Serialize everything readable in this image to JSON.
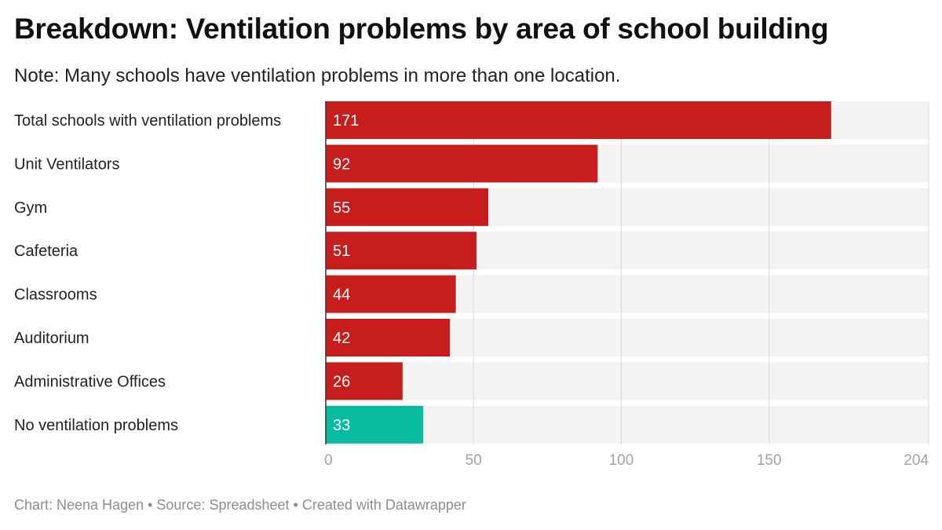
{
  "chart_data": {
    "type": "bar",
    "orientation": "horizontal",
    "title": "Breakdown: Ventilation problems by area of school building",
    "subtitle": "Note: Many schools have ventilation problems in more than one location.",
    "categories": [
      "Total schools with ventilation problems",
      "Unit Ventilators",
      "Gym",
      "Cafeteria",
      "Classrooms",
      "Auditorium",
      "Administrative Offices",
      "No ventilation problems"
    ],
    "values": [
      171,
      92,
      55,
      51,
      44,
      42,
      26,
      33
    ],
    "bar_colors": [
      "#c71e1d",
      "#c71e1d",
      "#c71e1d",
      "#c71e1d",
      "#c71e1d",
      "#c71e1d",
      "#c71e1d",
      "#09bb9f"
    ],
    "xlim": [
      0,
      204
    ],
    "xticks": [
      0,
      50,
      100,
      150,
      204
    ],
    "grid": true,
    "xlabel": "",
    "ylabel": ""
  },
  "footer": "Chart: Neena Hagen • Source: Spreadsheet • Created with Datawrapper",
  "colors": {
    "bar_primary": "#c71e1d",
    "bar_highlight": "#09bb9f",
    "background_track": "#f3f3f3",
    "gridline": "#d8d8d8",
    "axis_line": "#333333"
  }
}
